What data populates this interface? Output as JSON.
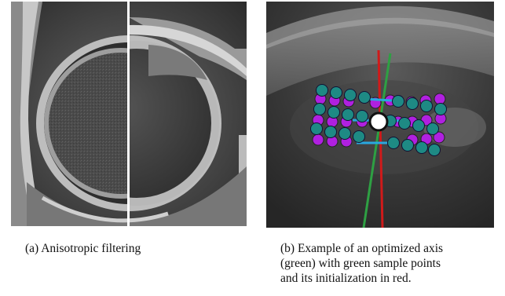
{
  "figure": {
    "panel_a": {
      "caption_tag": "(a)",
      "caption_text": "Anisotropic filtering"
    },
    "panel_b": {
      "caption_tag": "(b)",
      "caption_lines": [
        "Example of an optimized axis",
        "(green) with green sample points",
        "and its initialization in red."
      ]
    }
  },
  "colors": {
    "optimized_axis": "#2ea043",
    "initial_axis": "#d01a1a",
    "sample_point_teal": "#1e8a84",
    "sample_point_purple": "#b020e0",
    "connector_blue": "#29a8e0",
    "center_marker": "#ffffff"
  }
}
